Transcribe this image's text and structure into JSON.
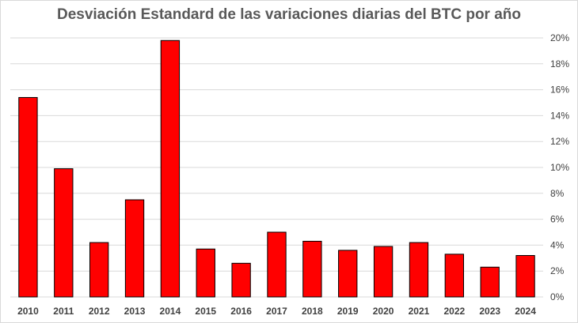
{
  "colors": {
    "bar": "#ff0000",
    "bar_stroke": "#000000",
    "grid": "#d9d9d9",
    "text": "#404040",
    "title": "#595959"
  },
  "chart_data": {
    "type": "bar",
    "title": "Desviación Estandard de las variaciones diarias del BTC por año",
    "xlabel": "",
    "ylabel": "",
    "categories": [
      "2010",
      "2011",
      "2012",
      "2013",
      "2014",
      "2015",
      "2016",
      "2017",
      "2018",
      "2019",
      "2020",
      "2021",
      "2022",
      "2023",
      "2024"
    ],
    "values": [
      15.4,
      9.9,
      4.2,
      7.5,
      19.8,
      3.7,
      2.6,
      5.0,
      4.3,
      3.6,
      3.9,
      4.2,
      3.3,
      2.3,
      3.2
    ],
    "value_unit": "%",
    "ylim": [
      0,
      20
    ],
    "y_ticks": [
      "0%",
      "2%",
      "4%",
      "6%",
      "8%",
      "10%",
      "12%",
      "14%",
      "16%",
      "18%",
      "20%"
    ],
    "y_axis_side": "right",
    "grid": true,
    "legend": "none"
  }
}
